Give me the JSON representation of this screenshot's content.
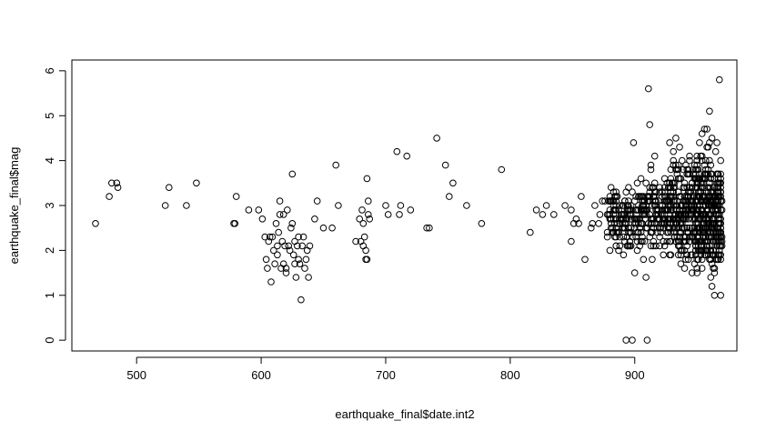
{
  "chart_data": {
    "type": "scatter",
    "title": "",
    "xlabel": "earthquake_final$date.int2",
    "ylabel": "earthquake_final$mag",
    "xlim": [
      448,
      982
    ],
    "ylim": [
      -0.24,
      6.24
    ],
    "x_ticks": [
      500,
      600,
      700,
      800,
      900
    ],
    "y_ticks": [
      0,
      1,
      2,
      3,
      4,
      5,
      6
    ],
    "x_tick_labels": [
      "500",
      "600",
      "700",
      "800",
      "900"
    ],
    "y_tick_labels": [
      "0",
      "1",
      "2",
      "3",
      "4",
      "5",
      "6"
    ],
    "grid": false,
    "legend": "none",
    "marker": "open-circle",
    "points": [
      [
        467,
        2.6
      ],
      [
        478,
        3.2
      ],
      [
        480,
        3.5
      ],
      [
        484,
        3.5
      ],
      [
        485,
        3.4
      ],
      [
        523,
        3.0
      ],
      [
        526,
        3.4
      ],
      [
        540,
        3.0
      ],
      [
        548,
        3.5
      ],
      [
        578,
        2.6
      ],
      [
        580,
        3.2
      ],
      [
        579,
        2.6
      ],
      [
        590,
        2.9
      ],
      [
        598,
        2.9
      ],
      [
        601,
        2.7
      ],
      [
        603,
        2.3
      ],
      [
        604,
        1.8
      ],
      [
        605,
        1.6
      ],
      [
        606,
        2.2
      ],
      [
        607,
        2.3
      ],
      [
        608,
        1.3
      ],
      [
        609,
        2.3
      ],
      [
        610,
        2.0
      ],
      [
        611,
        1.7
      ],
      [
        612,
        2.6
      ],
      [
        613,
        2.1
      ],
      [
        613,
        1.9
      ],
      [
        614,
        2.4
      ],
      [
        615,
        2.8
      ],
      [
        615,
        3.1
      ],
      [
        616,
        1.6
      ],
      [
        617,
        2.2
      ],
      [
        618,
        1.7
      ],
      [
        618,
        2.8
      ],
      [
        619,
        2.1
      ],
      [
        620,
        1.5
      ],
      [
        620,
        1.6
      ],
      [
        621,
        2.9
      ],
      [
        622,
        2.1
      ],
      [
        623,
        2.0
      ],
      [
        624,
        2.5
      ],
      [
        625,
        3.7
      ],
      [
        625,
        2.6
      ],
      [
        626,
        1.9
      ],
      [
        627,
        2.2
      ],
      [
        627,
        1.7
      ],
      [
        628,
        1.4
      ],
      [
        629,
        2.1
      ],
      [
        630,
        1.8
      ],
      [
        630,
        2.3
      ],
      [
        631,
        1.7
      ],
      [
        632,
        0.9
      ],
      [
        633,
        2.1
      ],
      [
        634,
        2.3
      ],
      [
        635,
        1.6
      ],
      [
        636,
        1.8
      ],
      [
        637,
        2.0
      ],
      [
        638,
        1.4
      ],
      [
        639,
        2.1
      ],
      [
        643,
        2.7
      ],
      [
        645,
        3.1
      ],
      [
        650,
        2.5
      ],
      [
        657,
        2.5
      ],
      [
        660,
        3.9
      ],
      [
        662,
        3.0
      ],
      [
        676,
        2.2
      ],
      [
        679,
        2.7
      ],
      [
        680,
        2.2
      ],
      [
        681,
        2.9
      ],
      [
        682,
        2.6
      ],
      [
        682,
        2.1
      ],
      [
        683,
        2.3
      ],
      [
        684,
        1.8
      ],
      [
        684,
        2.0
      ],
      [
        685,
        1.8
      ],
      [
        685,
        3.6
      ],
      [
        686,
        2.8
      ],
      [
        686,
        3.1
      ],
      [
        687,
        2.7
      ],
      [
        700,
        3.0
      ],
      [
        702,
        2.8
      ],
      [
        709,
        4.2
      ],
      [
        711,
        2.8
      ],
      [
        712,
        3.0
      ],
      [
        717,
        4.1
      ],
      [
        720,
        2.9
      ],
      [
        733,
        2.5
      ],
      [
        735,
        2.5
      ],
      [
        741,
        4.5
      ],
      [
        748,
        3.9
      ],
      [
        751,
        3.2
      ],
      [
        754,
        3.5
      ],
      [
        765,
        3.0
      ],
      [
        777,
        2.6
      ],
      [
        793,
        3.8
      ],
      [
        816,
        2.4
      ],
      [
        821,
        2.9
      ],
      [
        826,
        2.8
      ],
      [
        829,
        3.0
      ],
      [
        835,
        2.8
      ],
      [
        844,
        3.0
      ],
      [
        849,
        2.2
      ],
      [
        849,
        2.9
      ],
      [
        851,
        2.6
      ],
      [
        853,
        2.7
      ],
      [
        855,
        2.6
      ],
      [
        857,
        3.2
      ],
      [
        860,
        1.8
      ],
      [
        865,
        2.5
      ],
      [
        866,
        2.6
      ],
      [
        868,
        3.0
      ],
      [
        871,
        2.6
      ],
      [
        872,
        2.8
      ],
      [
        874,
        3.1
      ],
      [
        876,
        3.1
      ],
      [
        878,
        2.8
      ],
      [
        880,
        3.1
      ],
      [
        881,
        3.4
      ],
      [
        884,
        3.2
      ],
      [
        885,
        2.7
      ],
      [
        887,
        2.0
      ],
      [
        890,
        2.5
      ],
      [
        891,
        1.9
      ],
      [
        893,
        0.0
      ],
      [
        895,
        2.1
      ],
      [
        898,
        0.0
      ],
      [
        899,
        4.4
      ],
      [
        900,
        1.5
      ],
      [
        905,
        2.2
      ],
      [
        906,
        3.2
      ],
      [
        909,
        1.4
      ],
      [
        910,
        0.0
      ],
      [
        911,
        5.6
      ],
      [
        912,
        4.8
      ],
      [
        913,
        3.9
      ],
      [
        916,
        4.1
      ],
      [
        920,
        2.3
      ],
      [
        922,
        2.8
      ],
      [
        924,
        2.1
      ],
      [
        926,
        3.5
      ],
      [
        928,
        4.4
      ],
      [
        931,
        4.2
      ],
      [
        933,
        4.5
      ],
      [
        936,
        4.3
      ],
      [
        938,
        2.0
      ],
      [
        940,
        1.6
      ],
      [
        944,
        4.1
      ],
      [
        946,
        1.5
      ],
      [
        948,
        3.9
      ],
      [
        950,
        1.5
      ],
      [
        952,
        4.4
      ],
      [
        954,
        4.6
      ],
      [
        956,
        4.7
      ],
      [
        958,
        4.7
      ],
      [
        960,
        5.1
      ],
      [
        962,
        4.5
      ],
      [
        964,
        1.0
      ],
      [
        966,
        4.4
      ],
      [
        968,
        5.8
      ],
      [
        969,
        1.0
      ],
      [
        962,
        1.2
      ],
      [
        961,
        1.4
      ],
      [
        963,
        1.6
      ],
      [
        965,
        1.8
      ]
    ],
    "dense_clusters": [
      {
        "x_range": [
          878,
          902
        ],
        "y_range": [
          1.8,
          3.6
        ],
        "count": 130
      },
      {
        "x_range": [
          902,
          925
        ],
        "y_range": [
          1.6,
          4.0
        ],
        "count": 150
      },
      {
        "x_range": [
          925,
          948
        ],
        "y_range": [
          1.5,
          4.3
        ],
        "count": 260
      },
      {
        "x_range": [
          948,
          970
        ],
        "y_range": [
          0.9,
          4.6
        ],
        "count": 420
      }
    ]
  }
}
